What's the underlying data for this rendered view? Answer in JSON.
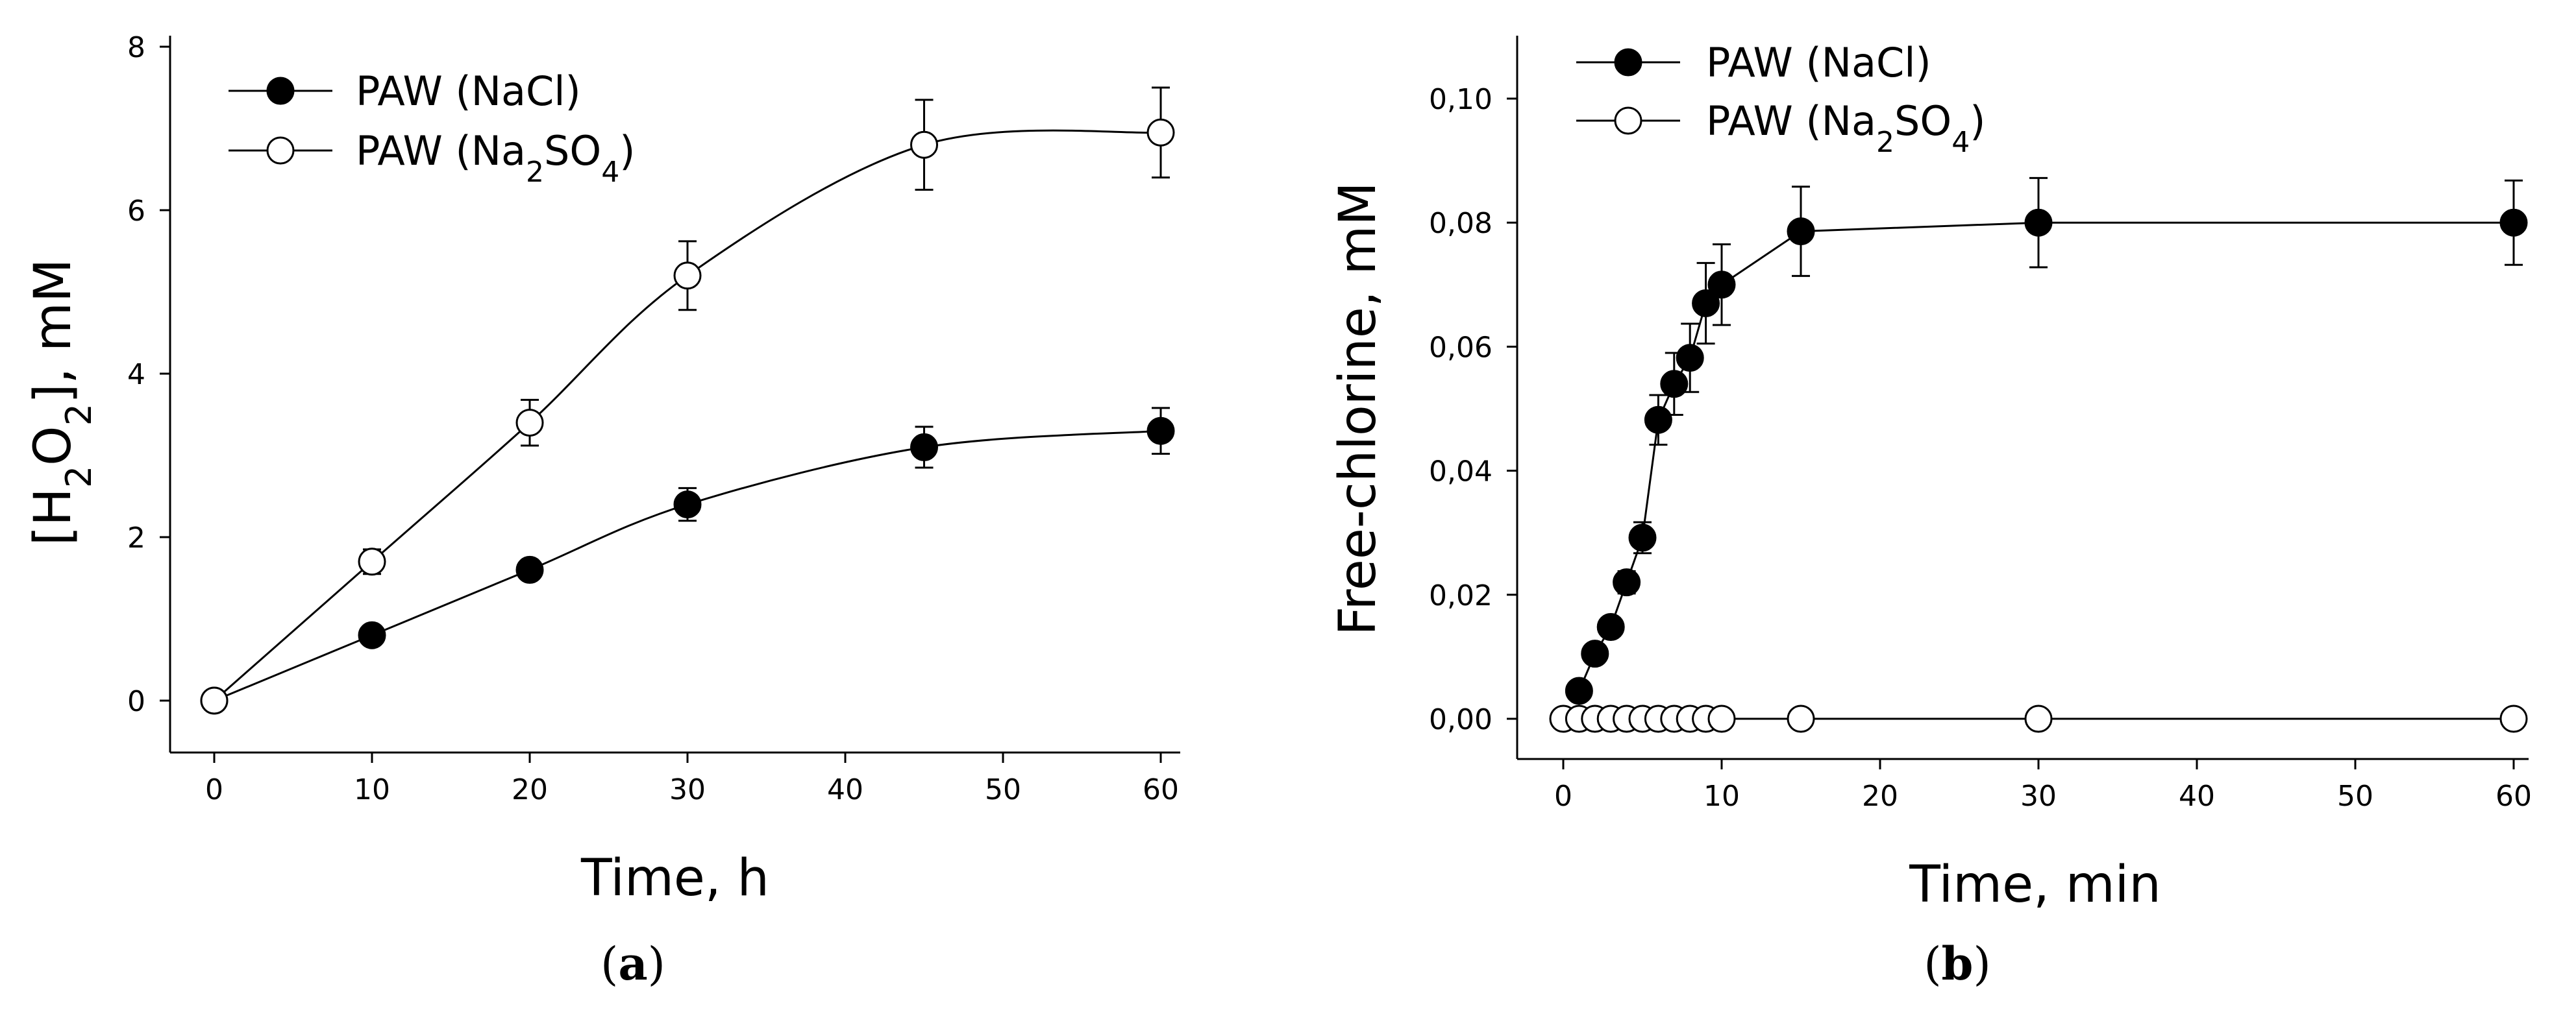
{
  "chart_data": [
    {
      "type": "line",
      "panel_label": "(a)",
      "panel_letter": "a",
      "xlabel": "Time, h",
      "ylabel": {
        "prefix": "[H",
        "sub1": "2",
        "mid": "O",
        "sub2": "2",
        "suffix": "], mM"
      },
      "xlim": [
        -3,
        62
      ],
      "ylim": [
        -0.6,
        8
      ],
      "xticks": [
        0,
        10,
        20,
        30,
        40,
        50,
        60
      ],
      "yticks": [
        0,
        2,
        4,
        6,
        8
      ],
      "xtick_labels": [
        "0",
        "10",
        "20",
        "30",
        "40",
        "50",
        "60"
      ],
      "ytick_labels": [
        "0",
        "2",
        "4",
        "6",
        "8"
      ],
      "series": [
        {
          "name": "PAW (NaCl)",
          "legend": {
            "text": "PAW (NaCl)"
          },
          "marker": "filled",
          "x": [
            0,
            10,
            20,
            30,
            45,
            60
          ],
          "y": [
            0,
            0.8,
            1.6,
            2.4,
            3.1,
            3.3
          ],
          "err": [
            0,
            0.05,
            0.12,
            0.2,
            0.25,
            0.28
          ]
        },
        {
          "name": "PAW (Na2SO4)",
          "legend": {
            "text": "PAW (Na",
            "sub1": "2",
            "mid": "SO",
            "sub2": "4",
            "suffix": ")"
          },
          "marker": "open",
          "x": [
            0,
            10,
            20,
            30,
            45,
            60
          ],
          "y": [
            0,
            1.7,
            3.4,
            5.2,
            6.8,
            6.95
          ],
          "err": [
            0,
            0.15,
            0.28,
            0.42,
            0.55,
            0.55
          ]
        }
      ]
    },
    {
      "type": "line",
      "panel_label": "(b)",
      "panel_letter": "b",
      "xlabel": "Time, min",
      "ylabel": "Free-chlorine, mM",
      "xlim": [
        -3,
        62
      ],
      "ylim": [
        -0.006,
        0.11
      ],
      "xticks": [
        0,
        10,
        20,
        30,
        40,
        50,
        60
      ],
      "yticks": [
        0,
        0.02,
        0.04,
        0.06,
        0.08,
        0.1
      ],
      "xtick_labels": [
        "0",
        "10",
        "20",
        "30",
        "40",
        "50",
        "60"
      ],
      "ytick_labels": [
        "0,00",
        "0,02",
        "0,04",
        "0,06",
        "0,08",
        "0,10"
      ],
      "series": [
        {
          "name": "PAW (NaCl)",
          "legend": {
            "text": "PAW (NaCl)"
          },
          "marker": "filled",
          "x": [
            1,
            2,
            3,
            4,
            5,
            6,
            7,
            8,
            9,
            10,
            15,
            30,
            60
          ],
          "y": [
            0.0045,
            0.0105,
            0.0148,
            0.022,
            0.0292,
            0.0482,
            0.054,
            0.0582,
            0.067,
            0.07,
            0.0786,
            0.08,
            0.08
          ],
          "err": [
            0.001,
            0.001,
            0.0015,
            0.0018,
            0.0025,
            0.004,
            0.005,
            0.0055,
            0.0065,
            0.0065,
            0.0072,
            0.0072,
            0.0068
          ]
        },
        {
          "name": "PAW (Na2SO4)",
          "legend": {
            "text": "PAW (Na",
            "sub1": "2",
            "mid": "SO",
            "sub2": "4",
            "suffix": ")"
          },
          "marker": "open",
          "x": [
            0,
            1,
            2,
            3,
            4,
            5,
            6,
            7,
            8,
            9,
            10,
            15,
            30,
            60
          ],
          "y": [
            0,
            0,
            0,
            0,
            0,
            0,
            0,
            0,
            0,
            0,
            0,
            0,
            0,
            0
          ],
          "err": [
            0,
            0,
            0,
            0,
            0,
            0,
            0,
            0,
            0,
            0,
            0,
            0,
            0,
            0
          ]
        }
      ]
    }
  ]
}
